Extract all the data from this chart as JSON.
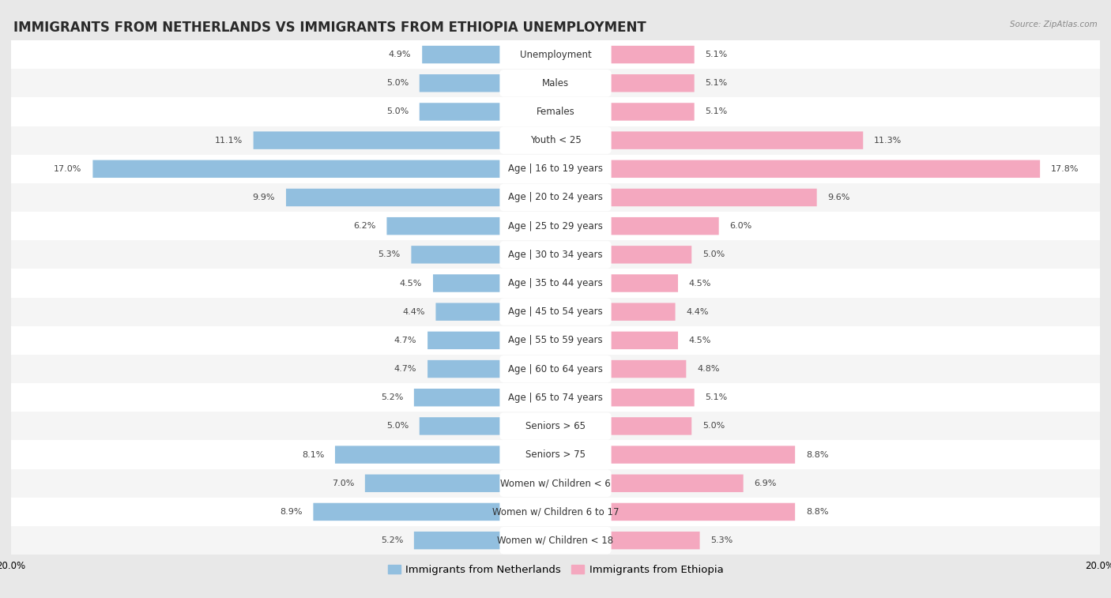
{
  "title": "IMMIGRANTS FROM NETHERLANDS VS IMMIGRANTS FROM ETHIOPIA UNEMPLOYMENT",
  "source": "Source: ZipAtlas.com",
  "categories": [
    "Unemployment",
    "Males",
    "Females",
    "Youth < 25",
    "Age | 16 to 19 years",
    "Age | 20 to 24 years",
    "Age | 25 to 29 years",
    "Age | 30 to 34 years",
    "Age | 35 to 44 years",
    "Age | 45 to 54 years",
    "Age | 55 to 59 years",
    "Age | 60 to 64 years",
    "Age | 65 to 74 years",
    "Seniors > 65",
    "Seniors > 75",
    "Women w/ Children < 6",
    "Women w/ Children 6 to 17",
    "Women w/ Children < 18"
  ],
  "netherlands_values": [
    4.9,
    5.0,
    5.0,
    11.1,
    17.0,
    9.9,
    6.2,
    5.3,
    4.5,
    4.4,
    4.7,
    4.7,
    5.2,
    5.0,
    8.1,
    7.0,
    8.9,
    5.2
  ],
  "ethiopia_values": [
    5.1,
    5.1,
    5.1,
    11.3,
    17.8,
    9.6,
    6.0,
    5.0,
    4.5,
    4.4,
    4.5,
    4.8,
    5.1,
    5.0,
    8.8,
    6.9,
    8.8,
    5.3
  ],
  "netherlands_color": "#92bfdf",
  "ethiopia_color": "#f4a8bf",
  "netherlands_label": "Immigrants from Netherlands",
  "ethiopia_label": "Immigrants from Ethiopia",
  "axis_limit": 20.0,
  "bg_color": "#e8e8e8",
  "row_color_odd": "#f5f5f5",
  "row_color_even": "#ffffff",
  "title_fontsize": 12,
  "label_fontsize": 8.5,
  "value_fontsize": 8,
  "legend_fontsize": 9.5
}
